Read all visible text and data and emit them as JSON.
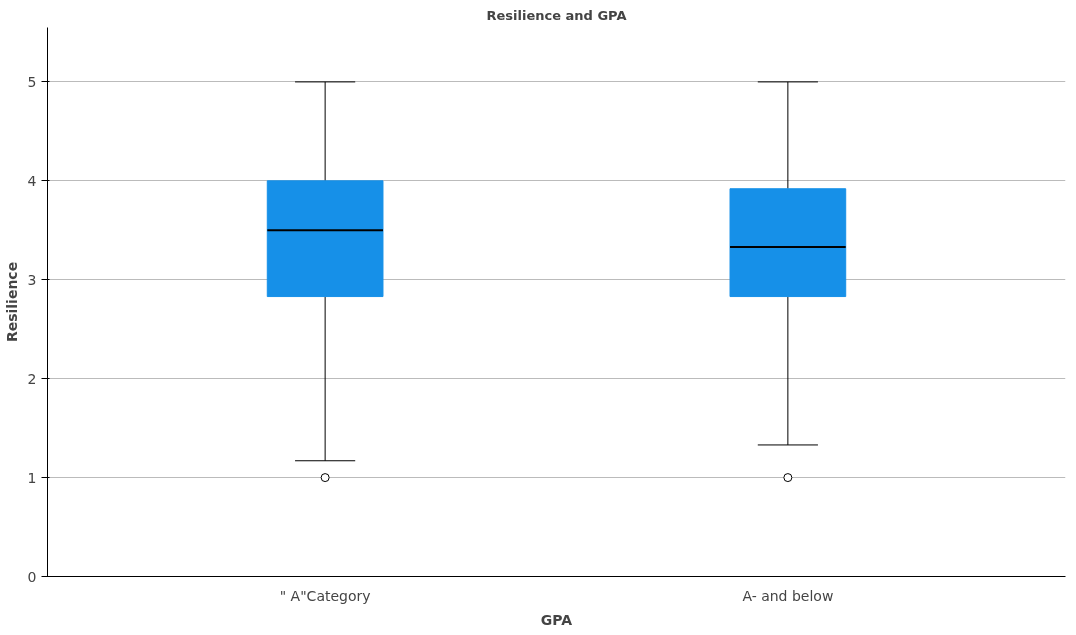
{
  "chart_data": {
    "type": "box",
    "title": "Resilience and GPA",
    "xlabel": "GPA",
    "ylabel": "Resilience",
    "categories": [
      "\" A\"Category",
      "A- and below"
    ],
    "series": [
      {
        "color": "#1690e8",
        "boxes": [
          {
            "low": 1.17,
            "q1": 2.83,
            "median": 3.5,
            "q3": 4.0,
            "high": 5.0,
            "outliers": [
              1.0
            ]
          },
          {
            "low": 1.33,
            "q1": 2.83,
            "median": 3.33,
            "q3": 3.92,
            "high": 5.0,
            "outliers": [
              1.0
            ]
          }
        ]
      }
    ],
    "ylim": [
      0,
      5.55
    ],
    "yticks": [
      0,
      1,
      2,
      3,
      4,
      5
    ],
    "grid": "y"
  }
}
